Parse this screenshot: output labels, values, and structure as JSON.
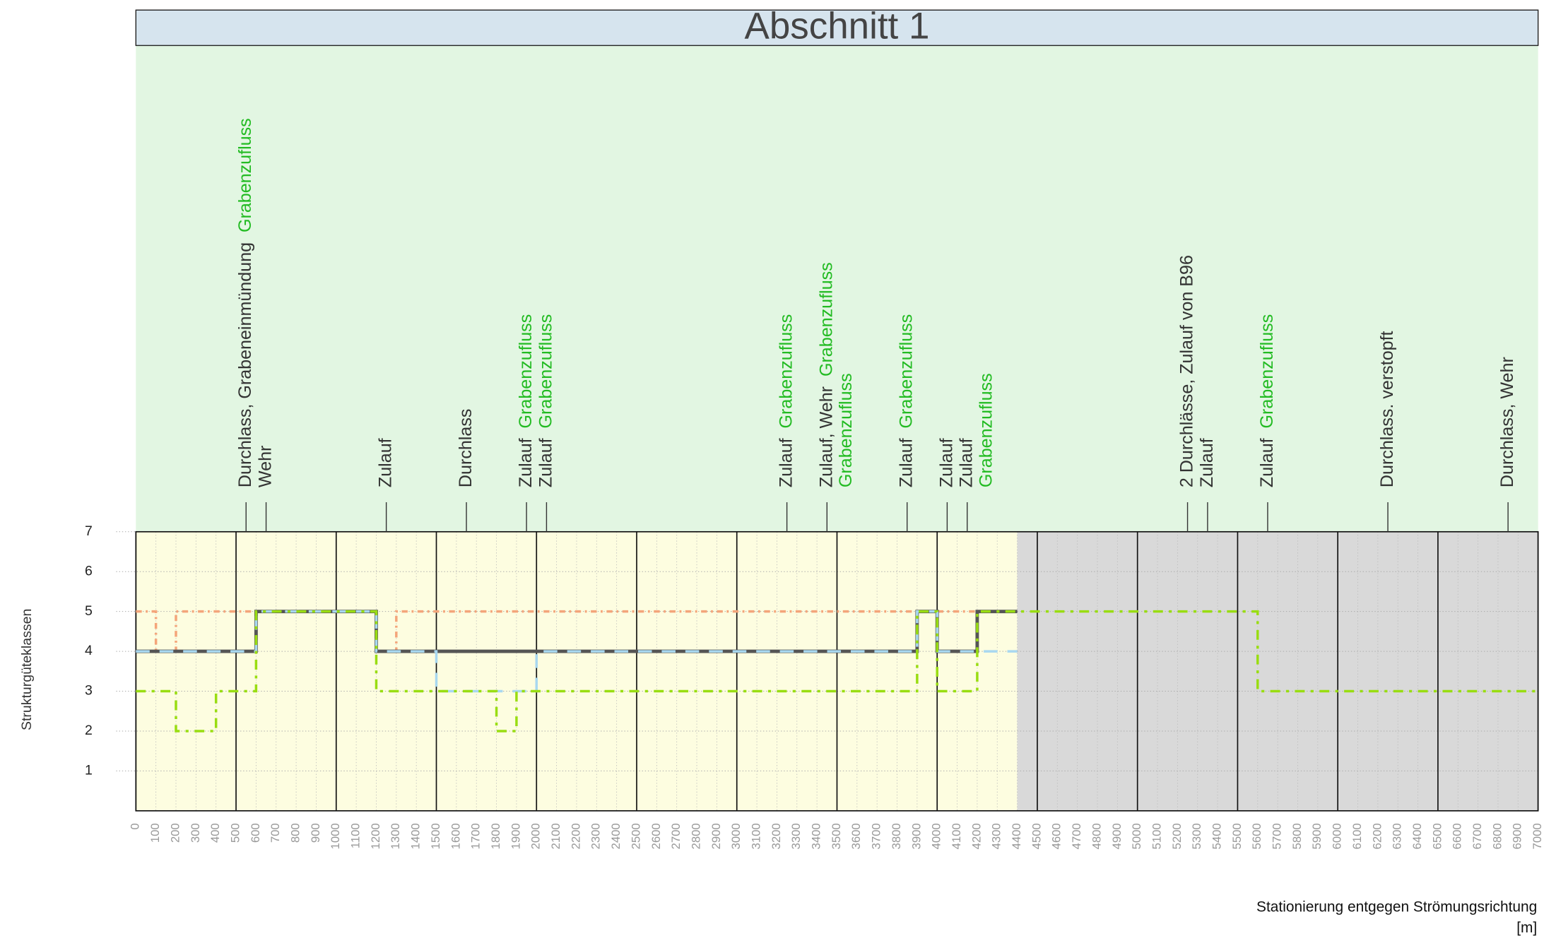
{
  "chart_data": {
    "type": "step",
    "title": "Abschnitt 1",
    "y_label": "Strukturgüteklassen",
    "x_label": "Stationierung entgegen Strömungsrichtung",
    "x_unit": "[m]",
    "xlim": [
      0,
      7000
    ],
    "ylim": [
      0,
      7
    ],
    "xticks": [
      0,
      100,
      200,
      300,
      400,
      500,
      600,
      700,
      800,
      900,
      1000,
      1100,
      1200,
      1300,
      1400,
      1500,
      1600,
      1700,
      1800,
      1900,
      2000,
      2100,
      2200,
      2300,
      2400,
      2500,
      2600,
      2700,
      2800,
      2900,
      3000,
      3100,
      3200,
      3300,
      3400,
      3500,
      3600,
      3700,
      3800,
      3900,
      4000,
      4100,
      4200,
      4300,
      4400,
      4500,
      4600,
      4700,
      4800,
      4900,
      5000,
      5100,
      5200,
      5300,
      5400,
      5500,
      5600,
      5700,
      5800,
      5900,
      6000,
      6100,
      6200,
      6300,
      6400,
      6500,
      6600,
      6700,
      6800,
      6900,
      7000
    ],
    "xmajor": [
      0,
      500,
      1000,
      1500,
      2000,
      2500,
      3000,
      3500,
      4000,
      4500,
      5000,
      5500,
      6000,
      6500,
      7000
    ],
    "yticks": [
      1,
      2,
      3,
      4,
      5,
      6,
      7
    ],
    "regions": [
      {
        "from": 0,
        "to": 4400,
        "color": "#fdfde0"
      },
      {
        "from": 4400,
        "to": 7000,
        "color": "#d9d9d9"
      }
    ],
    "series": [
      {
        "color": "#f4a57a",
        "dash": "6,4,2,4",
        "x": [
          0,
          100,
          200,
          1200,
          1300,
          4400
        ],
        "values": [
          5,
          4,
          5,
          4,
          5,
          5
        ]
      },
      {
        "color": "#555555",
        "dash": "none",
        "x": [
          0,
          600,
          1200,
          3900,
          4000,
          4200,
          4400
        ],
        "values": [
          4,
          5,
          4,
          5,
          4,
          5,
          5
        ]
      },
      {
        "color": "#a8d8f0",
        "dash": "14,10",
        "x": [
          0,
          600,
          1200,
          1500,
          2000,
          3900,
          4000,
          4400
        ],
        "values": [
          4,
          5,
          4,
          3,
          4,
          5,
          4,
          4
        ]
      },
      {
        "color": "#99dd11",
        "dash": "10,6,3,6",
        "x": [
          0,
          200,
          400,
          600,
          1200,
          1800,
          1900,
          3900,
          4000,
          4200,
          5600,
          7000
        ],
        "values": [
          3,
          2,
          3,
          5,
          3,
          2,
          3,
          5,
          3,
          5,
          3,
          3
        ]
      }
    ],
    "annotations": [
      {
        "x": 550,
        "lines": [
          [
            {
              "text": "Durchlass, Grabeneinmündung",
              "color": "#333333"
            },
            {
              "text": "Grabenzufluss",
              "color": "#22bb22"
            }
          ]
        ]
      },
      {
        "x": 650,
        "lines": [
          [
            {
              "text": "Wehr",
              "color": "#333333"
            }
          ]
        ]
      },
      {
        "x": 1250,
        "lines": [
          [
            {
              "text": "Zulauf",
              "color": "#333333"
            }
          ]
        ]
      },
      {
        "x": 1650,
        "lines": [
          [
            {
              "text": "Durchlass",
              "color": "#333333"
            }
          ]
        ]
      },
      {
        "x": 1950,
        "lines": [
          [
            {
              "text": "Zulauf",
              "color": "#333333"
            },
            {
              "text": "Grabenzufluss",
              "color": "#22bb22"
            }
          ]
        ]
      },
      {
        "x": 2050,
        "lines": [
          [
            {
              "text": "Zulauf",
              "color": "#333333"
            },
            {
              "text": "Grabenzufluss",
              "color": "#22bb22"
            }
          ]
        ]
      },
      {
        "x": 3250,
        "lines": [
          [
            {
              "text": "Zulauf",
              "color": "#333333"
            },
            {
              "text": "Grabenzufluss",
              "color": "#22bb22"
            }
          ]
        ]
      },
      {
        "x": 3450,
        "lines": [
          [
            {
              "text": "Zulauf, Wehr",
              "color": "#333333"
            },
            {
              "text": "Grabenzufluss",
              "color": "#22bb22"
            }
          ],
          [
            {
              "text": "Grabenzufluss",
              "color": "#22bb22"
            }
          ]
        ]
      },
      {
        "x": 3850,
        "lines": [
          [
            {
              "text": "Zulauf",
              "color": "#333333"
            },
            {
              "text": "Grabenzufluss",
              "color": "#22bb22"
            }
          ]
        ]
      },
      {
        "x": 4050,
        "lines": [
          [
            {
              "text": "Zulauf",
              "color": "#333333"
            }
          ]
        ]
      },
      {
        "x": 4150,
        "lines": [
          [
            {
              "text": "Zulauf",
              "color": "#333333"
            }
          ],
          [
            {
              "text": "Grabenzufluss",
              "color": "#22bb22"
            }
          ]
        ]
      },
      {
        "x": 5250,
        "lines": [
          [
            {
              "text": "2 Durchlässe, Zulauf von B96",
              "color": "#333333"
            }
          ]
        ]
      },
      {
        "x": 5350,
        "lines": [
          [
            {
              "text": "Zulauf",
              "color": "#333333"
            }
          ]
        ]
      },
      {
        "x": 5650,
        "lines": [
          [
            {
              "text": "Zulauf",
              "color": "#333333"
            },
            {
              "text": "Grabenzufluss",
              "color": "#22bb22"
            }
          ]
        ]
      },
      {
        "x": 6250,
        "lines": [
          [
            {
              "text": "Durchlass. verstopft",
              "color": "#333333"
            }
          ]
        ]
      },
      {
        "x": 6850,
        "lines": [
          [
            {
              "text": "Durchlass, Wehr",
              "color": "#333333"
            }
          ]
        ]
      }
    ]
  }
}
